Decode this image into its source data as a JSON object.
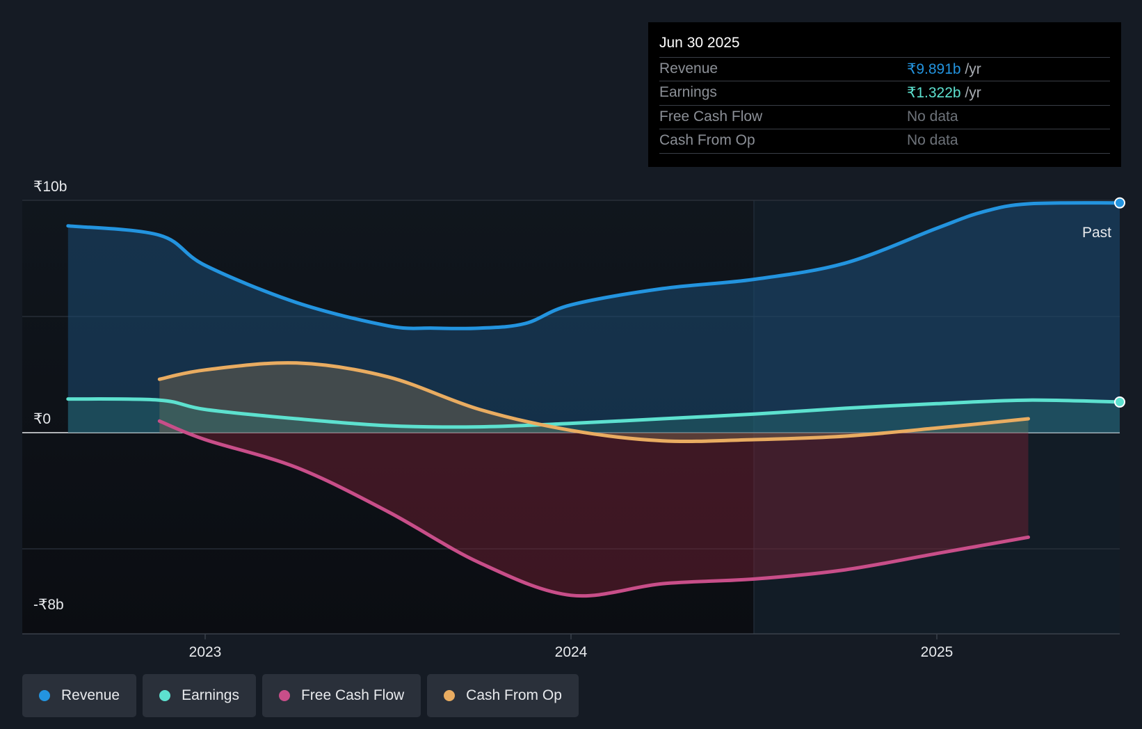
{
  "chart_data": {
    "type": "area",
    "y_unit": "₹ billions",
    "ylim": [
      -8,
      10
    ],
    "y_ticks": [
      {
        "value": 10,
        "label": "₹10b"
      },
      {
        "value": 0,
        "label": "₹0"
      },
      {
        "value": -8,
        "label": "-₹8b"
      }
    ],
    "y_gridlines": [
      10,
      5,
      0,
      -5
    ],
    "xlim": [
      2022.5,
      2025.5
    ],
    "x_ticks": [
      {
        "value": 2023,
        "label": "2023"
      },
      {
        "value": 2024,
        "label": "2024"
      },
      {
        "value": 2025,
        "label": "2025"
      }
    ],
    "past_start": 2024.5,
    "past_label": "Past",
    "series": [
      {
        "name": "Revenue",
        "key": "revenue",
        "color": "#2394df",
        "end_marker": true,
        "x": [
          2022.625,
          2022.875,
          2023.0,
          2023.25,
          2023.5,
          2023.625,
          2023.75,
          2023.875,
          2024.0,
          2024.25,
          2024.5,
          2024.75,
          2025.0,
          2025.125,
          2025.25,
          2025.5
        ],
        "y": [
          8.9,
          8.5,
          7.2,
          5.6,
          4.6,
          4.5,
          4.5,
          4.7,
          5.5,
          6.2,
          6.6,
          7.3,
          8.8,
          9.5,
          9.85,
          9.89
        ]
      },
      {
        "name": "Earnings",
        "key": "earnings",
        "color": "#5de1cf",
        "end_marker": true,
        "x": [
          2022.625,
          2022.875,
          2023.0,
          2023.25,
          2023.5,
          2023.75,
          2024.0,
          2024.25,
          2024.5,
          2024.75,
          2025.0,
          2025.25,
          2025.5
        ],
        "y": [
          1.45,
          1.4,
          1.0,
          0.6,
          0.3,
          0.25,
          0.4,
          0.6,
          0.8,
          1.05,
          1.25,
          1.4,
          1.32
        ]
      },
      {
        "name": "Free Cash Flow",
        "key": "fcf",
        "color": "#c84e89",
        "end_marker": false,
        "x": [
          2022.875,
          2023.0,
          2023.25,
          2023.5,
          2023.75,
          2024.0,
          2024.25,
          2024.5,
          2024.75,
          2025.0,
          2025.25
        ],
        "y": [
          0.5,
          -0.3,
          -1.5,
          -3.4,
          -5.6,
          -7.0,
          -6.5,
          -6.3,
          -5.9,
          -5.2,
          -4.5
        ]
      },
      {
        "name": "Cash From Op",
        "key": "cfo",
        "color": "#e9ac61",
        "end_marker": false,
        "x": [
          2022.875,
          2023.0,
          2023.25,
          2023.5,
          2023.75,
          2024.0,
          2024.25,
          2024.5,
          2024.75,
          2025.0,
          2025.25
        ],
        "y": [
          2.3,
          2.7,
          3.0,
          2.4,
          1.0,
          0.1,
          -0.35,
          -0.3,
          -0.15,
          0.2,
          0.6
        ]
      }
    ]
  },
  "tooltip": {
    "date": "Jun 30 2025",
    "rows": [
      {
        "label": "Revenue",
        "value": "₹9.891b",
        "unit": " /yr",
        "color": "#2394df"
      },
      {
        "label": "Earnings",
        "value": "₹1.322b",
        "unit": " /yr",
        "color": "#5de1cf"
      },
      {
        "label": "Free Cash Flow",
        "value": "No data",
        "unit": "",
        "color": "#6e737a"
      },
      {
        "label": "Cash From Op",
        "value": "No data",
        "unit": "",
        "color": "#6e737a"
      }
    ]
  },
  "legend": [
    {
      "label": "Revenue",
      "color": "#2394df"
    },
    {
      "label": "Earnings",
      "color": "#5de1cf"
    },
    {
      "label": "Free Cash Flow",
      "color": "#c84e89"
    },
    {
      "label": "Cash From Op",
      "color": "#e9ac61"
    }
  ]
}
